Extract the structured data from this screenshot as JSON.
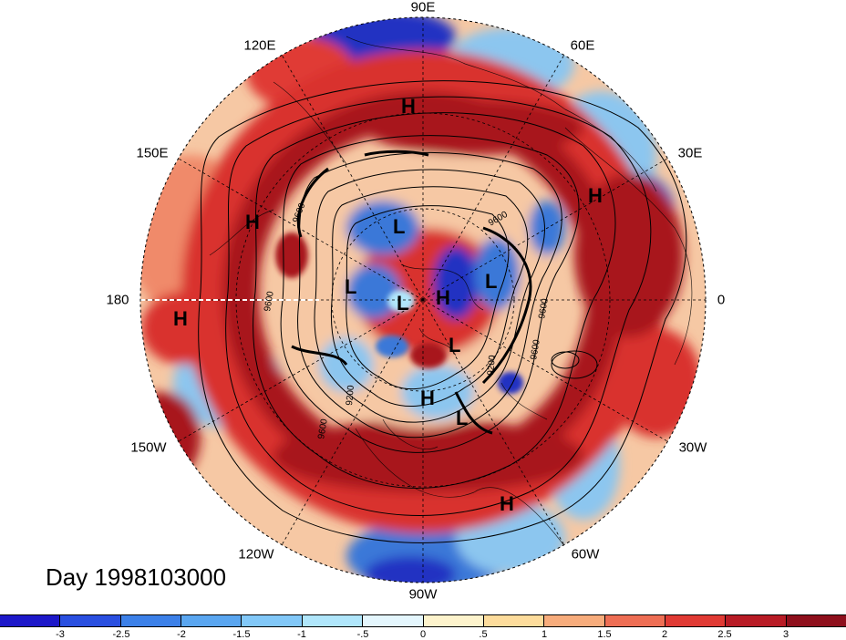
{
  "title": "Day 1998103000",
  "longitude_labels": [
    "90E",
    "120E",
    "60E",
    "150E",
    "30E",
    "180",
    "0",
    "150W",
    "30W",
    "120W",
    "60W",
    "90W"
  ],
  "pressure_markers": [
    "H",
    "H",
    "H",
    "H",
    "H",
    "H",
    "H",
    "L",
    "L",
    "L",
    "L",
    "L",
    "L"
  ],
  "contour_labels": [
    "9600",
    "9600",
    "9600",
    "9600",
    "9600",
    "9600",
    "9200",
    "9200"
  ],
  "colorbar": {
    "ticks": [
      "-3",
      "-2.5",
      "-2",
      "-1.5",
      "-1",
      "-.5",
      "0",
      ".5",
      "1",
      "1.5",
      "2",
      "2.5",
      "3"
    ],
    "colors": [
      "#1d18c9",
      "#2a4fe0",
      "#3c80e8",
      "#5aa6f0",
      "#82c8f8",
      "#b0e6fb",
      "#e4f6fd",
      "#fdf3cc",
      "#fddc9c",
      "#f7ac7c",
      "#ee6e54",
      "#e03a34",
      "#b81b25",
      "#8e0f1c"
    ]
  },
  "field_colors": {
    "deep_red": "#a8141f",
    "red": "#d9302f",
    "light_red": "#f08a6a",
    "pale": "#fbe3cd",
    "light_blue": "#8cc6ef",
    "blue": "#3b78d8",
    "deep_blue": "#2432c2"
  }
}
